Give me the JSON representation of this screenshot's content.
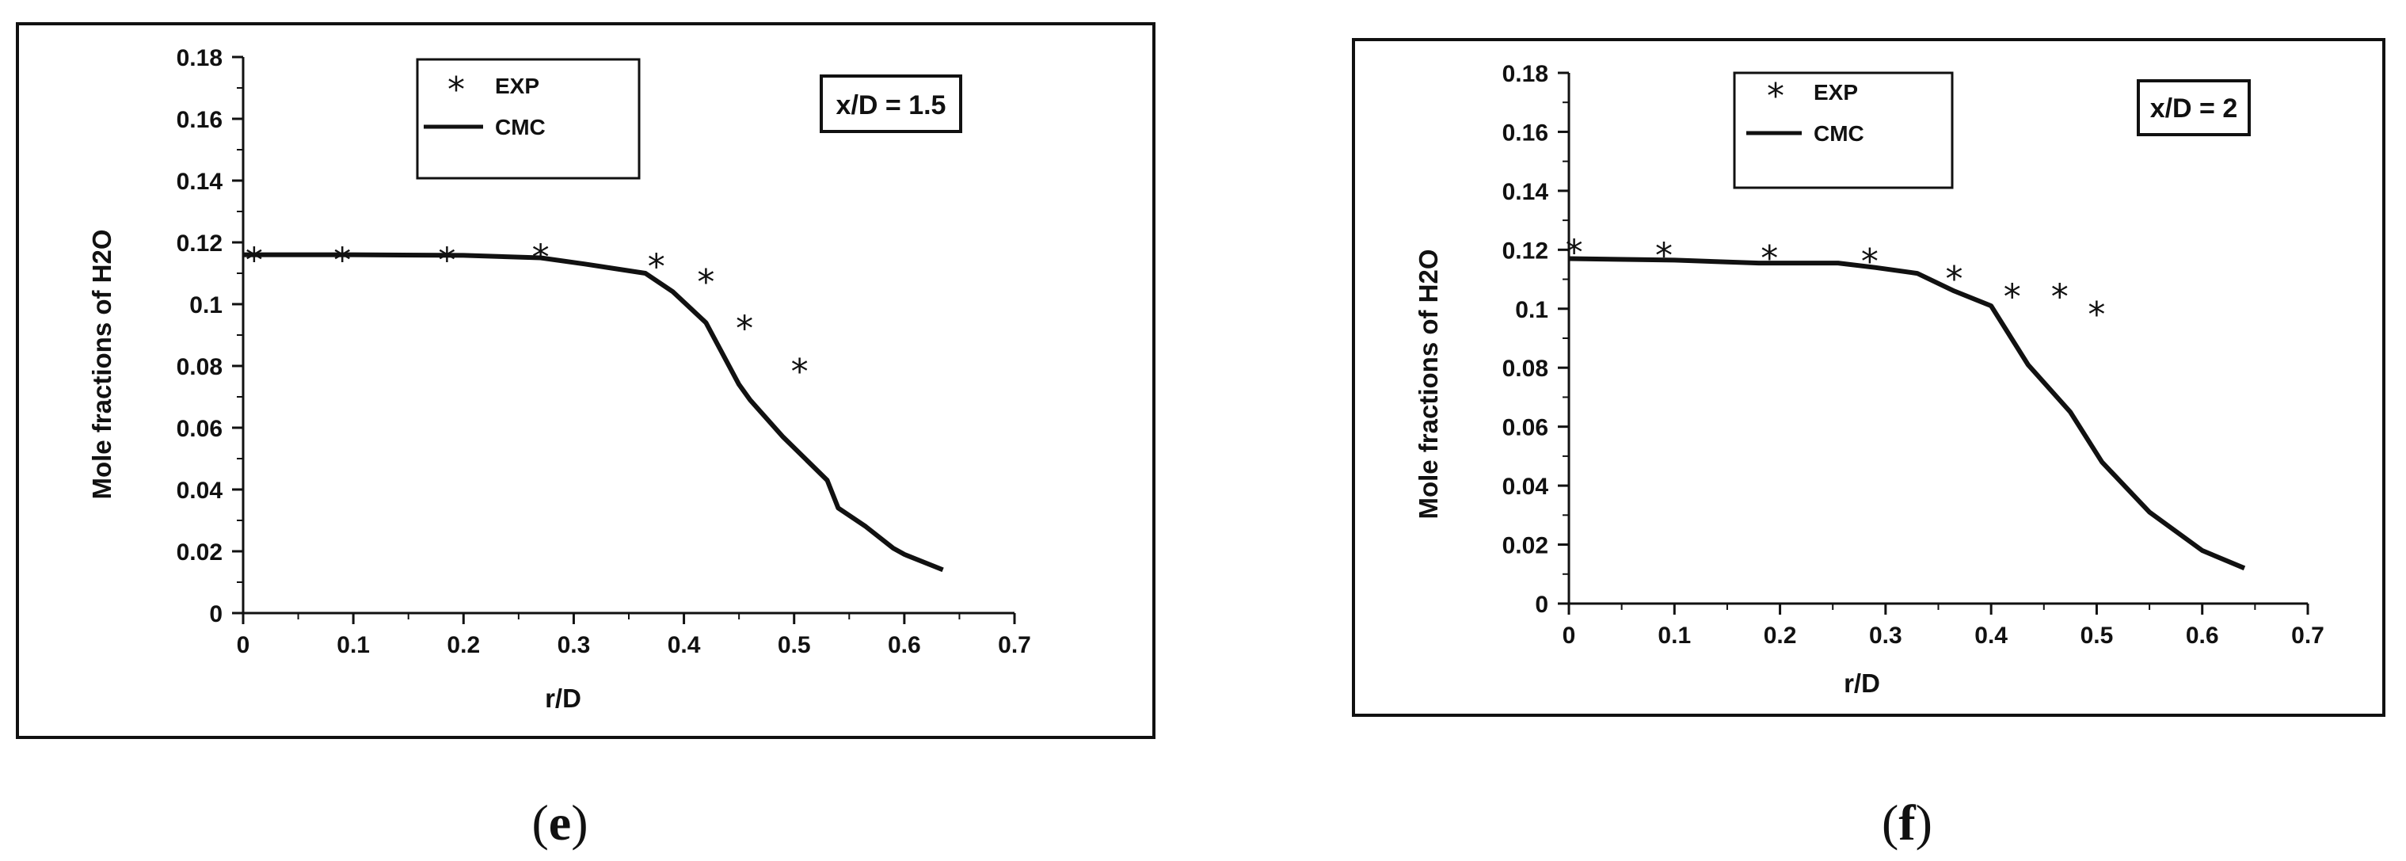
{
  "chart_data": [
    {
      "type": "line",
      "panel_label": "e",
      "annotation": "x/D = 1.5",
      "xlabel": "r/D",
      "ylabel": "Mole fractions of H2O",
      "xlim": [
        0,
        0.7
      ],
      "ylim": [
        0,
        0.18
      ],
      "xticks": [
        "0",
        "0.1",
        "0.2",
        "0.3",
        "0.4",
        "0.5",
        "0.6",
        "0.7"
      ],
      "yticks": [
        "0",
        "0.02",
        "0.04",
        "0.06",
        "0.08",
        "0.1",
        "0.12",
        "0.14",
        "0.16",
        "0.18"
      ],
      "legend_position": "top-left",
      "series": [
        {
          "name": "EXP",
          "style": "scatter",
          "marker": "*",
          "points": [
            [
              0.01,
              0.116
            ],
            [
              0.09,
              0.116
            ],
            [
              0.185,
              0.116
            ],
            [
              0.27,
              0.117
            ],
            [
              0.375,
              0.114
            ],
            [
              0.42,
              0.109
            ],
            [
              0.455,
              0.094
            ],
            [
              0.505,
              0.08
            ]
          ]
        },
        {
          "name": "CMC",
          "style": "line",
          "points": [
            [
              0.0,
              0.116
            ],
            [
              0.1,
              0.116
            ],
            [
              0.2,
              0.1158
            ],
            [
              0.27,
              0.115
            ],
            [
              0.31,
              0.113
            ],
            [
              0.365,
              0.11
            ],
            [
              0.39,
              0.104
            ],
            [
              0.42,
              0.094
            ],
            [
              0.45,
              0.074
            ],
            [
              0.46,
              0.069
            ],
            [
              0.49,
              0.057
            ],
            [
              0.53,
              0.043
            ],
            [
              0.54,
              0.034
            ],
            [
              0.565,
              0.028
            ],
            [
              0.59,
              0.021
            ],
            [
              0.6,
              0.019
            ],
            [
              0.635,
              0.014
            ]
          ]
        }
      ]
    },
    {
      "type": "line",
      "panel_label": "f",
      "annotation": "x/D = 2",
      "xlabel": "r/D",
      "ylabel": "Mole fractions of H2O",
      "xlim": [
        0,
        0.7
      ],
      "ylim": [
        0,
        0.18
      ],
      "xticks": [
        "0",
        "0.1",
        "0.2",
        "0.3",
        "0.4",
        "0.5",
        "0.6",
        "0.7"
      ],
      "yticks": [
        "0",
        "0.02",
        "0.04",
        "0.06",
        "0.08",
        "0.1",
        "0.12",
        "0.14",
        "0.16",
        "0.18"
      ],
      "legend_position": "top-left",
      "series": [
        {
          "name": "EXP",
          "style": "scatter",
          "marker": "*",
          "points": [
            [
              0.005,
              0.121
            ],
            [
              0.09,
              0.12
            ],
            [
              0.19,
              0.119
            ],
            [
              0.285,
              0.118
            ],
            [
              0.365,
              0.112
            ],
            [
              0.42,
              0.106
            ],
            [
              0.465,
              0.106
            ],
            [
              0.5,
              0.1
            ]
          ]
        },
        {
          "name": "CMC",
          "style": "line",
          "points": [
            [
              0.0,
              0.117
            ],
            [
              0.1,
              0.1165
            ],
            [
              0.18,
              0.1155
            ],
            [
              0.255,
              0.1155
            ],
            [
              0.29,
              0.114
            ],
            [
              0.33,
              0.112
            ],
            [
              0.365,
              0.106
            ],
            [
              0.4,
              0.101
            ],
            [
              0.435,
              0.081
            ],
            [
              0.475,
              0.065
            ],
            [
              0.505,
              0.048
            ],
            [
              0.55,
              0.031
            ],
            [
              0.6,
              0.018
            ],
            [
              0.64,
              0.012
            ]
          ]
        }
      ]
    }
  ]
}
